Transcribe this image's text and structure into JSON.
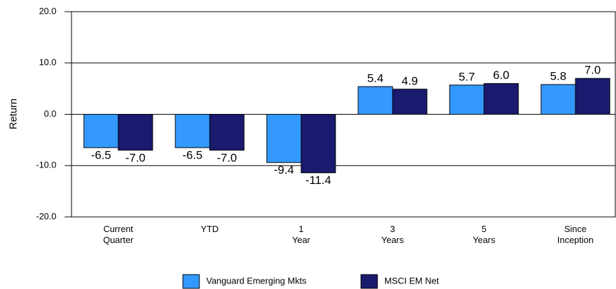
{
  "chart_data": {
    "type": "bar",
    "y_label": "Return",
    "categories": [
      "Current\nQuarter",
      "YTD",
      "1\nYear",
      "3\nYears",
      "5\nYears",
      "Since\nInception"
    ],
    "series": [
      {
        "name": "Vanguard Emerging Mkts",
        "color": "#3399ff",
        "values": [
          -6.5,
          -6.5,
          -9.4,
          5.4,
          5.7,
          5.8
        ],
        "value_labels": [
          "-6.5",
          "-6.5",
          "-9.4",
          "5.4",
          "5.7",
          "5.8"
        ]
      },
      {
        "name": "MSCI EM Net",
        "color": "#1a1a6e",
        "values": [
          -7.0,
          -7.0,
          -11.4,
          4.9,
          6.0,
          7.0
        ],
        "value_labels": [
          "-7.0",
          "-7.0",
          "-11.4",
          "4.9",
          "6.0",
          "7.0"
        ]
      }
    ],
    "ylim": [
      -20,
      20
    ],
    "yticks": [
      {
        "value": -20,
        "label": "-20.0"
      },
      {
        "value": -10,
        "label": "-10.0"
      },
      {
        "value": 0,
        "label": "0.0"
      },
      {
        "value": 10,
        "label": "10.0"
      },
      {
        "value": 20,
        "label": "20.0"
      }
    ],
    "grid": true
  }
}
